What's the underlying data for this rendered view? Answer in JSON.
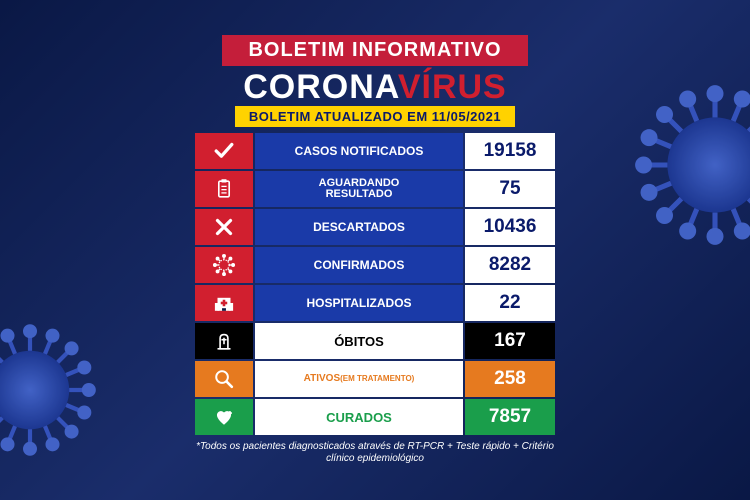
{
  "header": "BOLETIM INFORMATIVO",
  "title_part1": "CORONA",
  "title_part2": "VÍRUS",
  "subheader": "BOLETIM ATUALIZADO EM 11/05/2021",
  "colors": {
    "red": "#d11f2f",
    "blue": "#1a3aa8",
    "white": "#ffffff",
    "black": "#000000",
    "orange": "#e67a1f",
    "green": "#1a9e4b",
    "text_dark": "#0a1a6a"
  },
  "rows": [
    {
      "icon": "check",
      "label": "CASOS NOTIFICADOS",
      "value": "19158",
      "icon_bg": "#d11f2f",
      "label_bg": "#1a3aa8",
      "label_color": "#ffffff",
      "value_bg": "#ffffff",
      "value_color": "#0a1a6a",
      "label_size": 12
    },
    {
      "icon": "clipboard",
      "label": "AGUARDANDO RESULTADO",
      "value": "75",
      "icon_bg": "#d11f2f",
      "label_bg": "#1a3aa8",
      "label_color": "#ffffff",
      "value_bg": "#ffffff",
      "value_color": "#0a1a6a",
      "label_size": 11
    },
    {
      "icon": "x",
      "label": "DESCARTADOS",
      "value": "10436",
      "icon_bg": "#d11f2f",
      "label_bg": "#1a3aa8",
      "label_color": "#ffffff",
      "value_bg": "#ffffff",
      "value_color": "#0a1a6a",
      "label_size": 12
    },
    {
      "icon": "virus",
      "label": "CONFIRMADOS",
      "value": "8282",
      "icon_bg": "#d11f2f",
      "label_bg": "#1a3aa8",
      "label_color": "#ffffff",
      "value_bg": "#ffffff",
      "value_color": "#0a1a6a",
      "label_size": 12
    },
    {
      "icon": "hospital",
      "label": "HOSPITALIZADOS",
      "value": "22",
      "icon_bg": "#d11f2f",
      "label_bg": "#1a3aa8",
      "label_color": "#ffffff",
      "value_bg": "#ffffff",
      "value_color": "#0a1a6a",
      "label_size": 12
    },
    {
      "icon": "grave",
      "label": "ÓBITOS",
      "value": "167",
      "icon_bg": "#000000",
      "label_bg": "#ffffff",
      "label_color": "#000000",
      "value_bg": "#000000",
      "value_color": "#ffffff",
      "label_size": 13
    },
    {
      "icon": "magnify",
      "label": "ATIVOS (EM TRATAMENTO)",
      "value": "258",
      "icon_bg": "#e67a1f",
      "label_bg": "#ffffff",
      "label_color": "#e67a1f",
      "value_bg": "#e67a1f",
      "value_color": "#ffffff",
      "label_size": 10
    },
    {
      "icon": "heart",
      "label": "CURADOS",
      "value": "7857",
      "icon_bg": "#1a9e4b",
      "label_bg": "#ffffff",
      "label_color": "#1a9e4b",
      "value_bg": "#1a9e4b",
      "value_color": "#ffffff",
      "label_size": 13
    }
  ],
  "footnote": "*Todos os pacientes diagnosticados através de RT-PCR + Teste rápido + Critério clínico epidemiológico"
}
